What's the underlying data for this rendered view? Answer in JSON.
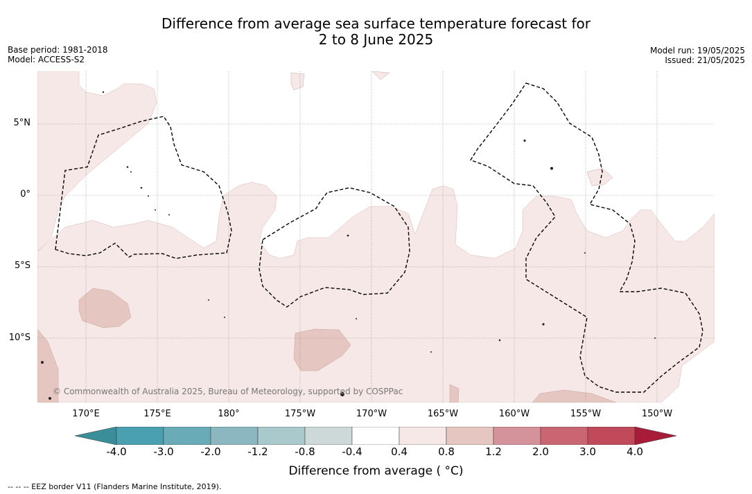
{
  "title": {
    "line1": "Difference from average sea surface temperature forecast for",
    "line2": "2 to 8 June 2025"
  },
  "meta_left": {
    "base_period": "Base period: 1981-2018",
    "model": "Model: ACCESS-S2"
  },
  "meta_right": {
    "model_run": "Model run: 19/05/2025",
    "issued": "Issued: 21/05/2025"
  },
  "map": {
    "lat_labels": [
      "5°N",
      "0°",
      "5°S",
      "10°S"
    ],
    "lon_labels": [
      "170°E",
      "175°E",
      "180°",
      "175°W",
      "170°W",
      "165°W",
      "160°W",
      "155°W",
      "150°W"
    ],
    "copyright": "© Commonwealth of Australia 2025, Bureau of Meteorology, supported by COSPPac"
  },
  "colorbar": {
    "ticks": [
      "-4.0",
      "-3.0",
      "-2.0",
      "-1.2",
      "-0.8",
      "-0.4",
      "0.4",
      "0.8",
      "1.2",
      "2.0",
      "3.0",
      "4.0"
    ],
    "colors": [
      "#3a8e9a",
      "#4aa0b0",
      "#6aabb8",
      "#8ab7c0",
      "#aac9cc",
      "#cdd8d8",
      "#ffffff",
      "#f5e8e6",
      "#e6c6c0",
      "#d4929a",
      "#c96672",
      "#c04a5a",
      "#a81c3a"
    ],
    "label": "Difference from average ( °C)"
  },
  "footer": "--  --  -- EEZ border V11 (Flanders Marine Institute, 2019)."
}
